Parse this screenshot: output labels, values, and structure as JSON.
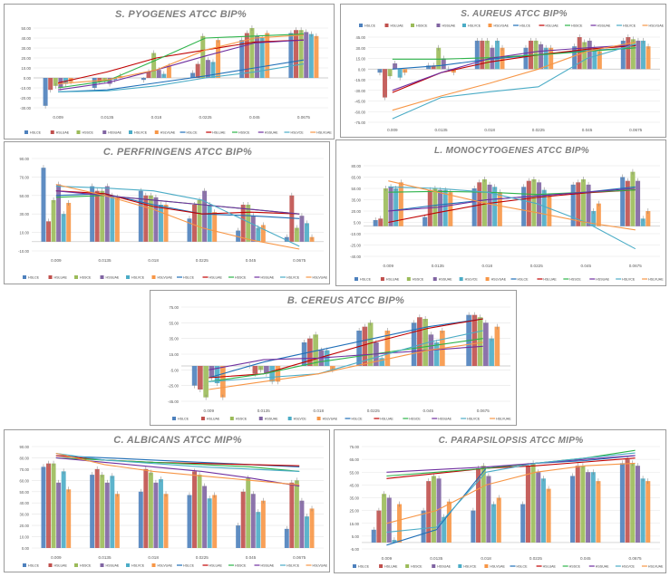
{
  "colors": {
    "bars": [
      "#4e81bd",
      "#c0504d",
      "#9bbb59",
      "#8064a2",
      "#4bacc6",
      "#f79646"
    ],
    "lines": [
      "#1f6fb8",
      "#c00000",
      "#2db34a",
      "#7030a0",
      "#4bacc6",
      "#f79646"
    ]
  },
  "legend_labels": [
    "HSLCE",
    "HSLUAE",
    "HSSCE",
    "HSSUAE",
    "HSLVCE",
    "HSLVUAE",
    "HSLCE",
    "HSLUAE",
    "HSSCE",
    "HSSUAE",
    "HSLVCE",
    "HSLVUAE"
  ],
  "chart_data": [
    {
      "type": "bar",
      "title": "S. PYOGENES ATCC BIP%",
      "categories": [
        "0.009",
        "0.0135",
        "0.018",
        "0.0225",
        "0.045",
        "0.0675"
      ],
      "ylim": [
        -30,
        50
      ],
      "yticks": [
        "-30.00",
        "-20.00",
        "-10.00",
        "0.00",
        "10.00",
        "20.00",
        "30.00",
        "40.00",
        "50.00"
      ],
      "series": [
        {
          "name": "HSLCE",
          "values": [
            -28,
            -10,
            -2,
            5,
            38,
            45
          ]
        },
        {
          "name": "HSLUAE",
          "values": [
            -12,
            -4,
            6,
            14,
            45,
            48
          ]
        },
        {
          "name": "HSSCE",
          "values": [
            -8,
            -3,
            25,
            42,
            50,
            48
          ]
        },
        {
          "name": "HSSUAE",
          "values": [
            -10,
            -6,
            8,
            18,
            42,
            46
          ]
        },
        {
          "name": "HSLVCE",
          "values": [
            -6,
            -2,
            4,
            16,
            40,
            44
          ]
        },
        {
          "name": "HSLVUAE",
          "values": [
            -4,
            2,
            12,
            38,
            45,
            42
          ]
        }
      ],
      "trend": [
        {
          "name": "HSLCE",
          "values": [
            -14,
            -12,
            -5,
            2,
            10,
            18
          ]
        },
        {
          "name": "HSLUAE",
          "values": [
            -5,
            6,
            20,
            28,
            36,
            38
          ]
        },
        {
          "name": "HSSCE",
          "values": [
            -10,
            -3,
            18,
            40,
            42,
            44
          ]
        },
        {
          "name": "HSSUAE",
          "values": [
            -12,
            -5,
            8,
            22,
            35,
            38
          ]
        },
        {
          "name": "HSLVCE",
          "values": [
            -14,
            -13,
            -8,
            0,
            6,
            14
          ]
        },
        {
          "name": "HSLVUAE",
          "values": [
            -6,
            -2,
            8,
            28,
            40,
            43
          ]
        }
      ],
      "legend": "bottom"
    },
    {
      "type": "bar",
      "title": "S. AUREUS ATCC BIP%",
      "categories": [
        "0.009",
        "0.0135",
        "0.018",
        "0.0225",
        "0.045",
        "0.0675"
      ],
      "ylim": [
        -75,
        45
      ],
      "yticks": [
        "-75.00",
        "-60.00",
        "-45.00",
        "-30.00",
        "-15.00",
        "0.00",
        "15.00",
        "30.00",
        "45.00"
      ],
      "series": [
        {
          "name": "HSLCE",
          "values": [
            -5,
            5,
            40,
            30,
            32,
            40
          ]
        },
        {
          "name": "HSLUAE",
          "values": [
            -40,
            5,
            40,
            40,
            45,
            45
          ]
        },
        {
          "name": "HSSCE",
          "values": [
            -10,
            30,
            40,
            40,
            38,
            42
          ]
        },
        {
          "name": "HSSUAE",
          "values": [
            8,
            15,
            30,
            35,
            40,
            40
          ]
        },
        {
          "name": "HSLVCE",
          "values": [
            -12,
            0,
            40,
            30,
            30,
            40
          ]
        },
        {
          "name": "HSLVUAE",
          "values": [
            -5,
            -5,
            30,
            30,
            25,
            32
          ]
        }
      ],
      "trend": [
        {
          "name": "HSLCE",
          "values": [
            0,
            5,
            14,
            20,
            26,
            30
          ]
        },
        {
          "name": "HSLUAE",
          "values": [
            -33,
            -5,
            10,
            20,
            28,
            33
          ]
        },
        {
          "name": "HSSCE",
          "values": [
            14,
            14,
            16,
            20,
            25,
            30
          ]
        },
        {
          "name": "HSSUAE",
          "values": [
            -30,
            -5,
            15,
            25,
            30,
            34
          ]
        },
        {
          "name": "HSLVCE",
          "values": [
            -70,
            -40,
            -32,
            -25,
            15,
            35
          ]
        },
        {
          "name": "HSLVUAE",
          "values": [
            -58,
            -38,
            -20,
            0,
            25,
            38
          ]
        }
      ],
      "legend": "top"
    },
    {
      "type": "bar",
      "title": "C. PERFRINGENS ATCC BIP%",
      "categories": [
        "0.009",
        "0.0135",
        "0.018",
        "0.0225",
        "0.045",
        "0.0675"
      ],
      "ylim": [
        -10,
        90
      ],
      "yticks": [
        "-10.00",
        "10.00",
        "30.00",
        "50.00",
        "70.00",
        "90.00"
      ],
      "series": [
        {
          "name": "HSLCE",
          "values": [
            80,
            60,
            55,
            25,
            12,
            5
          ]
        },
        {
          "name": "HSLUAE",
          "values": [
            22,
            55,
            50,
            40,
            40,
            50
          ]
        },
        {
          "name": "HSSCE",
          "values": [
            45,
            55,
            50,
            45,
            40,
            15
          ]
        },
        {
          "name": "HSSUAE",
          "values": [
            62,
            60,
            48,
            55,
            28,
            28
          ]
        },
        {
          "name": "HSLVCE",
          "values": [
            30,
            50,
            40,
            40,
            15,
            20
          ]
        },
        {
          "name": "HSLVUAE",
          "values": [
            42,
            48,
            40,
            32,
            18,
            5
          ]
        }
      ],
      "trend": [
        {
          "name": "HSLCE",
          "values": [
            50,
            52,
            40,
            30,
            28,
            25
          ]
        },
        {
          "name": "HSLUAE",
          "values": [
            55,
            52,
            38,
            30,
            32,
            30
          ]
        },
        {
          "name": "HSSCE",
          "values": [
            48,
            50,
            45,
            40,
            35,
            30
          ]
        },
        {
          "name": "HSSUAE",
          "values": [
            55,
            50,
            45,
            40,
            35,
            30
          ]
        },
        {
          "name": "HSLVCE",
          "values": [
            60,
            58,
            55,
            45,
            20,
            -5
          ]
        },
        {
          "name": "HSLVUAE",
          "values": [
            62,
            50,
            35,
            15,
            2,
            -8
          ]
        }
      ],
      "legend": "bottom"
    },
    {
      "type": "bar",
      "title": "L. MONOCYTOGENES ATCC BIP%",
      "categories": [
        "0.009",
        "0.0135",
        "0.018",
        "0.0225",
        "0.045",
        "0.0675"
      ],
      "ylim": [
        -40,
        80
      ],
      "yticks": [
        "-40.00",
        "-25.00",
        "-10.00",
        "5.00",
        "20.00",
        "35.00",
        "50.00",
        "65.00",
        "80.00"
      ],
      "series": [
        {
          "name": "HSLCE",
          "values": [
            8,
            12,
            50,
            52,
            55,
            65
          ]
        },
        {
          "name": "HSLUAE",
          "values": [
            10,
            48,
            58,
            60,
            58,
            60
          ]
        },
        {
          "name": "HSSCE",
          "values": [
            50,
            50,
            62,
            62,
            62,
            72
          ]
        },
        {
          "name": "HSSUAE",
          "values": [
            52,
            48,
            55,
            58,
            55,
            60
          ]
        },
        {
          "name": "HSLVCE",
          "values": [
            50,
            48,
            52,
            48,
            20,
            10
          ]
        },
        {
          "name": "HSLVUAE",
          "values": [
            58,
            45,
            45,
            40,
            30,
            20
          ]
        }
      ],
      "trend": [
        {
          "name": "HSLCE",
          "values": [
            20,
            28,
            35,
            40,
            45,
            52
          ]
        },
        {
          "name": "HSLUAE",
          "values": [
            5,
            18,
            30,
            38,
            44,
            48
          ]
        },
        {
          "name": "HSSCE",
          "values": [
            45,
            46,
            45,
            42,
            45,
            48
          ]
        },
        {
          "name": "HSSUAE",
          "values": [
            20,
            25,
            35,
            40,
            45,
            50
          ]
        },
        {
          "name": "HSLVCE",
          "values": [
            52,
            50,
            45,
            30,
            5,
            -30
          ]
        },
        {
          "name": "HSLVUAE",
          "values": [
            60,
            45,
            30,
            18,
            5,
            -5
          ]
        }
      ],
      "legend": "bottom"
    },
    {
      "type": "bar",
      "title": "B. CEREUS ATCC BIP%",
      "categories": [
        "0.009",
        "0.0135",
        "0.018",
        "0.0225",
        "0.045",
        "0.0675"
      ],
      "ylim": [
        -45,
        75
      ],
      "yticks": [
        "-45.00",
        "-25.00",
        "-5.00",
        "15.00",
        "35.00",
        "55.00",
        "75.00"
      ],
      "series": [
        {
          "name": "HSLCE",
          "values": [
            -25,
            0,
            30,
            45,
            55,
            65
          ]
        },
        {
          "name": "HSLUAE",
          "values": [
            -30,
            -10,
            35,
            50,
            62,
            65
          ]
        },
        {
          "name": "HSSCE",
          "values": [
            -40,
            -5,
            40,
            55,
            60,
            62
          ]
        },
        {
          "name": "HSSUAE",
          "values": [
            -15,
            -10,
            20,
            30,
            40,
            55
          ]
        },
        {
          "name": "HSLVCE",
          "values": [
            -22,
            -20,
            20,
            10,
            30,
            35
          ]
        },
        {
          "name": "HSLVUAE",
          "values": [
            -40,
            -20,
            -5,
            45,
            45,
            50
          ]
        }
      ],
      "trend": [
        {
          "name": "HSLCE",
          "values": [
            -15,
            5,
            20,
            35,
            50,
            60
          ]
        },
        {
          "name": "HSLUAE",
          "values": [
            -15,
            -10,
            10,
            30,
            48,
            60
          ]
        },
        {
          "name": "HSSCE",
          "values": [
            -20,
            -10,
            5,
            15,
            25,
            35
          ]
        },
        {
          "name": "HSSUAE",
          "values": [
            -5,
            8,
            10,
            15,
            20,
            25
          ]
        },
        {
          "name": "HSLVCE",
          "values": [
            -20,
            -15,
            -10,
            10,
            30,
            45
          ]
        },
        {
          "name": "HSLVUAE",
          "values": [
            -30,
            -20,
            -10,
            5,
            20,
            30
          ]
        }
      ],
      "legend": "bottom"
    },
    {
      "type": "bar",
      "title": "C. ALBICANS ATCC MIP%",
      "categories": [
        "0.009",
        "0.0135",
        "0.018",
        "0.0225",
        "0.045",
        "0.0675"
      ],
      "ylim": [
        0,
        90
      ],
      "yticks": [
        "0.00",
        "10.00",
        "20.00",
        "30.00",
        "40.00",
        "50.00",
        "60.00",
        "70.00",
        "80.00",
        "90.00"
      ],
      "series": [
        {
          "name": "HSLCE",
          "values": [
            72,
            65,
            50,
            47,
            20,
            17
          ]
        },
        {
          "name": "HSLUAE",
          "values": [
            75,
            70,
            70,
            68,
            50,
            58
          ]
        },
        {
          "name": "HSSCE",
          "values": [
            75,
            65,
            67,
            65,
            62,
            60
          ]
        },
        {
          "name": "HSSUAE",
          "values": [
            58,
            58,
            58,
            55,
            48,
            42
          ]
        },
        {
          "name": "HSLVCE",
          "values": [
            68,
            64,
            61,
            44,
            32,
            28
          ]
        },
        {
          "name": "HSLVUAE",
          "values": [
            52,
            48,
            48,
            47,
            42,
            35
          ]
        }
      ],
      "trend": [
        {
          "name": "HSLCE",
          "values": [
            82,
            80,
            78,
            76,
            74,
            72
          ]
        },
        {
          "name": "HSLUAE",
          "values": [
            82,
            78,
            76,
            75,
            74,
            73
          ]
        },
        {
          "name": "HSSCE",
          "values": [
            80,
            78,
            76,
            74,
            72,
            68
          ]
        },
        {
          "name": "HSSUAE",
          "values": [
            80,
            76,
            72,
            68,
            62,
            55
          ]
        },
        {
          "name": "HSLVCE",
          "values": [
            84,
            78,
            75,
            72,
            70,
            68
          ]
        },
        {
          "name": "HSLVUAE",
          "values": [
            84,
            74,
            68,
            64,
            60,
            56
          ]
        }
      ],
      "legend": "bottom"
    },
    {
      "type": "bar",
      "title": "C. PARAPSILOPSIS ATCC MIP%",
      "categories": [
        "0.009",
        "0.0135",
        "0.018",
        "0.0225",
        "0.045",
        "0.0675"
      ],
      "ylim": [
        -5,
        75
      ],
      "yticks": [
        "-5.00",
        "5.00",
        "15.00",
        "25.00",
        "35.00",
        "45.00",
        "55.00",
        "65.00",
        "75.00"
      ],
      "series": [
        {
          "name": "HSLCE",
          "values": [
            10,
            25,
            25,
            30,
            52,
            62
          ]
        },
        {
          "name": "HSLUAE",
          "values": [
            25,
            48,
            58,
            60,
            60,
            65
          ]
        },
        {
          "name": "HSSCE",
          "values": [
            38,
            52,
            60,
            62,
            60,
            62
          ]
        },
        {
          "name": "HSSUAE",
          "values": [
            35,
            50,
            52,
            55,
            55,
            60
          ]
        },
        {
          "name": "HSLVCE",
          "values": [
            2,
            20,
            30,
            50,
            55,
            50
          ]
        },
        {
          "name": "HSLVUAE",
          "values": [
            30,
            32,
            35,
            42,
            48,
            48
          ]
        }
      ],
      "trend": [
        {
          "name": "HSLCE",
          "values": [
            -2,
            10,
            58,
            62,
            64,
            68
          ]
        },
        {
          "name": "HSLUAE",
          "values": [
            50,
            54,
            58,
            60,
            63,
            66
          ]
        },
        {
          "name": "HSSCE",
          "values": [
            52,
            55,
            58,
            62,
            66,
            72
          ]
        },
        {
          "name": "HSSUAE",
          "values": [
            55,
            57,
            59,
            62,
            65,
            68
          ]
        },
        {
          "name": "HSLVCE",
          "values": [
            8,
            12,
            55,
            62,
            66,
            70
          ]
        },
        {
          "name": "HSLVUAE",
          "values": [
            15,
            25,
            45,
            55,
            60,
            62
          ]
        }
      ],
      "legend": "bottom"
    }
  ]
}
